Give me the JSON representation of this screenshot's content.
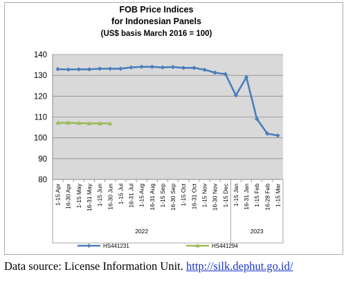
{
  "chart_data": {
    "type": "line",
    "title": [
      "FOB Price Indices",
      "for Indonesian Panels",
      "(US$ basis March 2016 = 100)"
    ],
    "categories": [
      "1-15 Apr",
      "16-30 Apr",
      "1-15 May",
      "16-31 May",
      "1-15 Jun",
      "16-30 Jun",
      "1-15 Jul",
      "16-31 Jul",
      "1-15 Aug",
      "16-31 Aug",
      "1-15 Sep",
      "16-30 Sep",
      "1-15 Oct",
      "16-31 Oct",
      "1-15 Nov",
      "16-30 Nov",
      "1-15 Dec",
      "1-15 Jan",
      "16-31 Jan",
      "1-15 Feb",
      "16-28 Feb",
      "1-15 Mar"
    ],
    "year_groups": [
      {
        "label": "2022",
        "count": 17
      },
      {
        "label": "2023",
        "count": 5
      }
    ],
    "ylim": [
      80,
      140
    ],
    "yticks": [
      80,
      90,
      100,
      110,
      120,
      130,
      140
    ],
    "grid": true,
    "legend_position": "bottom",
    "series": [
      {
        "name": "HS441231",
        "color": "#4a7ebb",
        "values": [
          133,
          132.8,
          132.9,
          132.9,
          133.2,
          133.2,
          133.2,
          133.8,
          134.1,
          134.1,
          133.8,
          134.0,
          133.6,
          133.6,
          132.7,
          131.3,
          130.6,
          120.4,
          129.1,
          109.1,
          102.0,
          101.1
        ]
      },
      {
        "name": "HS441294",
        "color": "#9bbb59",
        "values": [
          107.2,
          107.2,
          107.1,
          106.9,
          106.9,
          106.9,
          null,
          null,
          null,
          null,
          null,
          null,
          null,
          null,
          null,
          null,
          null,
          null,
          null,
          null,
          null,
          null
        ]
      }
    ]
  },
  "caption": {
    "text": "Data source: License Information Unit. ",
    "link": "http://silk.dephut.go.id/"
  }
}
